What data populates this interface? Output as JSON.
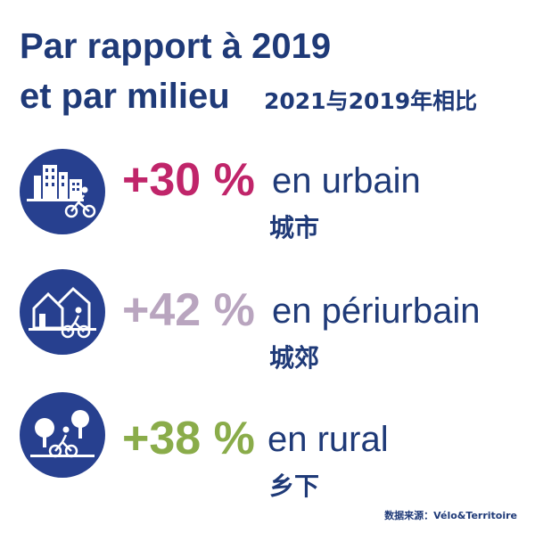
{
  "header": {
    "title_line1": "Par rapport à 2019",
    "title_line2": "et par milieu",
    "subtitle_cn": "2021与2019年相比"
  },
  "rows": [
    {
      "percent": "+30 %",
      "label": "en urbain",
      "label_cn": "城市",
      "color": "#c0256a",
      "icon": "urban-cyclist-icon"
    },
    {
      "percent": "+42 %",
      "label": "en périurbain",
      "label_cn": "城郊",
      "color": "#b9a5bf",
      "icon": "periurban-cyclist-icon"
    },
    {
      "percent": "+38 %",
      "label": "en rural",
      "label_cn": "乡下",
      "color": "#8aac4a",
      "icon": "rural-cyclist-icon"
    }
  ],
  "footer": {
    "source": "数据来源：Vélo&Territoire"
  },
  "colors": {
    "navy": "#1f3a78",
    "icon_bg": "#27408f"
  }
}
